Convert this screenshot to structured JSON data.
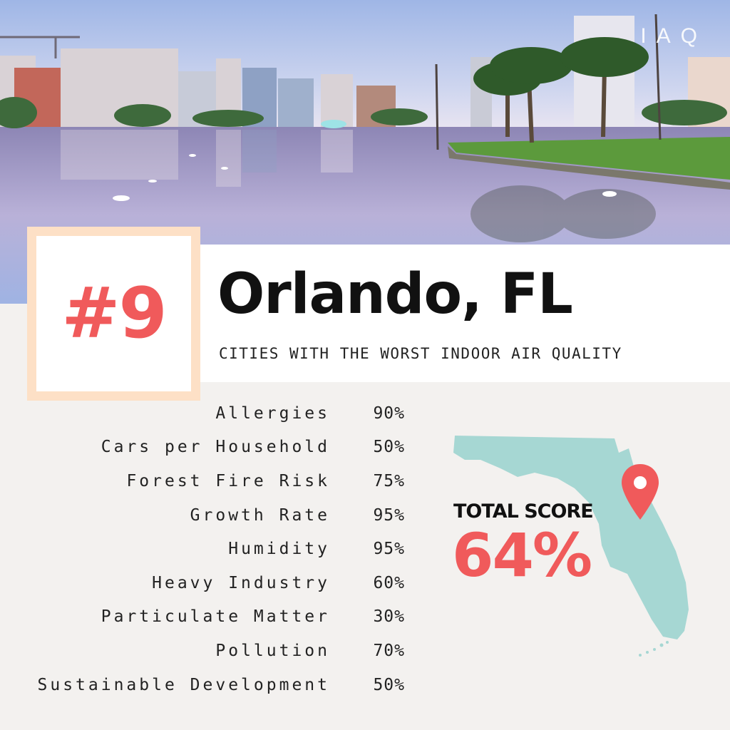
{
  "brand": {
    "logo_text": "IAQ"
  },
  "rank": {
    "label": "#9"
  },
  "city": {
    "name": "Orlando, FL"
  },
  "subtitle": "CITIES WITH THE WORST INDOOR AIR QUALITY",
  "metrics": [
    {
      "label": "Allergies",
      "value": "90%"
    },
    {
      "label": "Cars per Household",
      "value": "50%"
    },
    {
      "label": "Forest Fire Risk",
      "value": "75%"
    },
    {
      "label": "Growth Rate",
      "value": "95%"
    },
    {
      "label": "Humidity",
      "value": "95%"
    },
    {
      "label": "Heavy Industry",
      "value": "60%"
    },
    {
      "label": "Particulate Matter",
      "value": "30%"
    },
    {
      "label": "Pollution",
      "value": "70%"
    },
    {
      "label": "Sustainable Development",
      "value": "50%"
    }
  ],
  "total": {
    "label": "TOTAL SCORE",
    "value": "64%"
  },
  "icons": {
    "map": "florida-map-icon",
    "pin": "location-pin-icon"
  },
  "colors": {
    "accent": "#f05a5b",
    "map": "#a6d7d3",
    "rank_frame": "#fde0c6",
    "background": "#f3f1ef"
  }
}
